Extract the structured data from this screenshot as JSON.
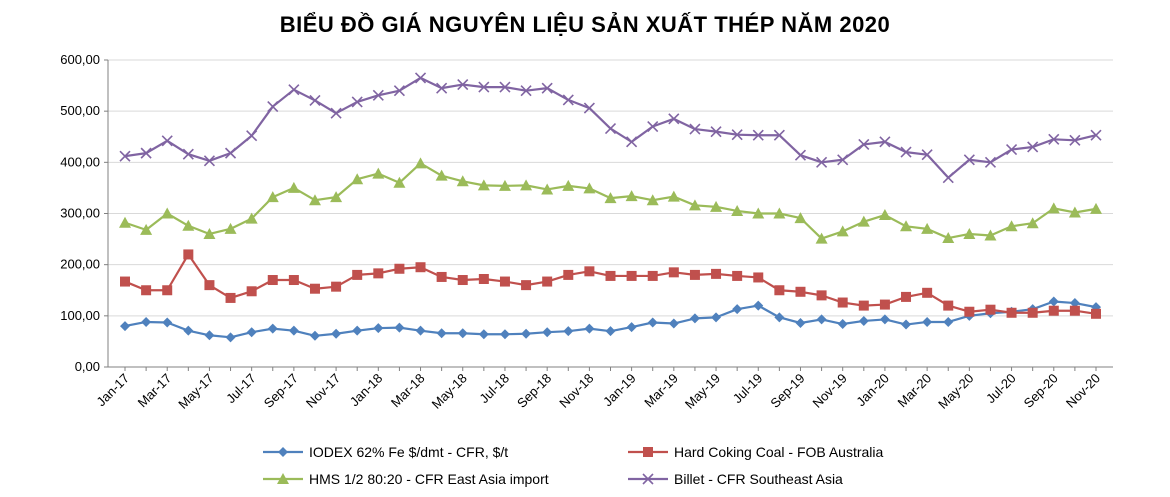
{
  "chart_data": {
    "type": "line",
    "title": "BIỂU ĐỒ GIÁ NGUYÊN LIỆU SẢN XUẤT THÉP NĂM 2020",
    "xlabel": "",
    "ylabel": "",
    "ylim": [
      0,
      600
    ],
    "yticks": [
      "0,00",
      "100,00",
      "200,00",
      "300,00",
      "400,00",
      "500,00",
      "600,00"
    ],
    "grid": true,
    "legend_position": "bottom",
    "x": [
      "Jan-17",
      "Feb-17",
      "Mar-17",
      "Apr-17",
      "May-17",
      "Jun-17",
      "Jul-17",
      "Aug-17",
      "Sep-17",
      "Oct-17",
      "Nov-17",
      "Dec-17",
      "Jan-18",
      "Feb-18",
      "Mar-18",
      "Apr-18",
      "May-18",
      "Jun-18",
      "Jul-18",
      "Aug-18",
      "Sep-18",
      "Oct-18",
      "Nov-18",
      "Dec-18",
      "Jan-19",
      "Feb-19",
      "Mar-19",
      "Apr-19",
      "May-19",
      "Jun-19",
      "Jul-19",
      "Aug-19",
      "Sep-19",
      "Oct-19",
      "Nov-19",
      "Dec-19",
      "Jan-20",
      "Feb-20",
      "Mar-20",
      "Apr-20",
      "May-20",
      "Jun-20",
      "Jul-20",
      "Aug-20",
      "Sep-20",
      "Oct-20",
      "Nov-20"
    ],
    "x_tick_labels": [
      "Jan-17",
      "Mar-17",
      "May-17",
      "Jul-17",
      "Sep-17",
      "Nov-17",
      "Jan-18",
      "Mar-18",
      "May-18",
      "Jul-18",
      "Sep-18",
      "Nov-18",
      "Jan-19",
      "Mar-19",
      "May-19",
      "Jul-19",
      "Sep-19",
      "Nov-19",
      "Jan-20",
      "Mar-20",
      "May-20",
      "Jul-20",
      "Sep-20",
      "Nov-20"
    ],
    "series": [
      {
        "name": "IODEX 62% Fe $/dmt - CFR, $/t",
        "color": "#4f81bd",
        "marker": "diamond",
        "values": [
          80,
          88,
          87,
          71,
          62,
          58,
          68,
          75,
          71,
          61,
          65,
          71,
          76,
          77,
          71,
          66,
          66,
          64,
          64,
          65,
          68,
          70,
          75,
          70,
          78,
          87,
          85,
          95,
          97,
          113,
          120,
          97,
          86,
          93,
          84,
          90,
          93,
          83,
          88,
          88,
          100,
          105,
          108,
          113,
          128,
          125,
          117
        ]
      },
      {
        "name": "Hard Coking Coal - FOB Australia",
        "color": "#c0504d",
        "marker": "square",
        "values": [
          167,
          150,
          150,
          220,
          160,
          135,
          148,
          170,
          170,
          153,
          157,
          180,
          183,
          192,
          195,
          176,
          170,
          172,
          167,
          160,
          167,
          180,
          187,
          178,
          178,
          178,
          185,
          180,
          182,
          178,
          175,
          150,
          147,
          140,
          126,
          120,
          122,
          137,
          145,
          120,
          108,
          112,
          106,
          106,
          110,
          110,
          104
        ]
      },
      {
        "name": "HMS 1/2 80:20 - CFR East Asia import",
        "color": "#9bbb59",
        "marker": "triangle",
        "values": [
          282,
          268,
          300,
          276,
          260,
          270,
          290,
          332,
          350,
          326,
          332,
          367,
          378,
          360,
          398,
          374,
          363,
          355,
          354,
          355,
          347,
          354,
          349,
          330,
          334,
          326,
          333,
          316,
          313,
          305,
          300,
          300,
          291,
          251,
          265,
          284,
          297,
          275,
          270,
          252,
          260,
          257,
          275,
          281,
          310,
          302,
          309
        ]
      },
      {
        "name": "Billet - CFR Southeast Asia",
        "color": "#8064a2",
        "marker": "x",
        "values": [
          412,
          418,
          442,
          416,
          403,
          418,
          452,
          509,
          542,
          521,
          496,
          518,
          531,
          540,
          565,
          545,
          552,
          547,
          547,
          540,
          545,
          522,
          506,
          466,
          440,
          470,
          485,
          465,
          460,
          454,
          453,
          453,
          414,
          400,
          405,
          435,
          440,
          420,
          415,
          370,
          405,
          400,
          425,
          430,
          445,
          443,
          453
        ]
      }
    ]
  }
}
